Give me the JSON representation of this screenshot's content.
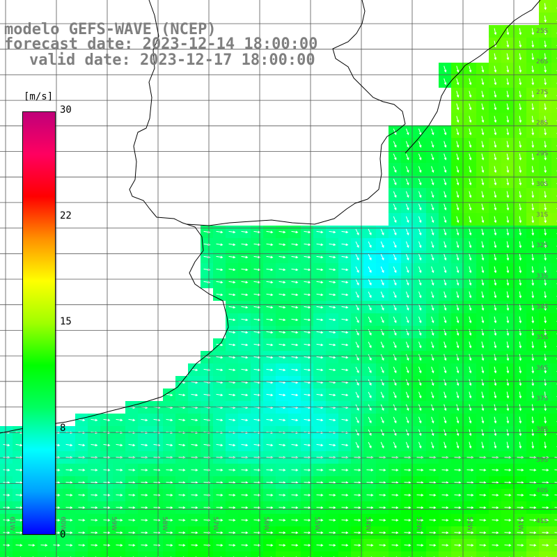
{
  "title": {
    "line1": "modelo GEFS-WAVE (NCEP)",
    "line2": "forecast date: 2023-12-14 18:00:00",
    "line3": "valid date: 2023-12-17 18:00:00"
  },
  "colorbar": {
    "unit": "[m/s]",
    "ticks": [
      "30",
      "22",
      "15",
      "8",
      "0"
    ],
    "min": 0,
    "max": 30,
    "stops": [
      "#0000ff",
      "#00a0ff",
      "#00ffff",
      "#00ff60",
      "#00ff00",
      "#a0ff00",
      "#ffff00",
      "#ff9000",
      "#ff0000",
      "#ff0060",
      "#c0007a"
    ]
  },
  "map_labels": {
    "lat_right": [
      "25S",
      "26S",
      "27S",
      "28S",
      "29S",
      "30S",
      "31S",
      "32S",
      "33S",
      "34S",
      "35S",
      "36S",
      "37S",
      "38S",
      "39S",
      "40S",
      "41S"
    ],
    "lon_bottom": [
      "61W",
      "60W",
      "59W",
      "58W",
      "57W",
      "56W",
      "55W",
      "54W",
      "53W",
      "52W",
      "51W"
    ]
  }
}
